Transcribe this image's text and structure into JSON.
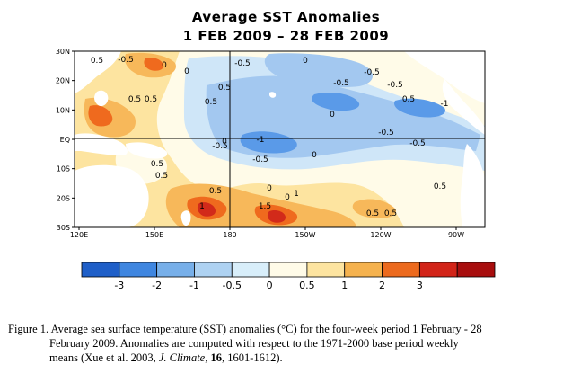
{
  "title": {
    "line1": "Average SST Anomalies",
    "line2": "1 FEB 2009 – 28 FEB 2009"
  },
  "map": {
    "lat_labels": [
      "30N",
      "20N",
      "10N",
      "EQ",
      "10S",
      "20S",
      "30S"
    ],
    "lon_labels": [
      "120E",
      "150E",
      "180",
      "150W",
      "120W",
      "90W"
    ],
    "contour_labels": [
      "0.5",
      "-0.5",
      "0",
      "0.5",
      "-0.5",
      "0",
      "-0.5",
      "0.5",
      "0.5",
      "0",
      "0.5",
      "-1",
      "-0.5",
      "-0.5",
      "0",
      "-1",
      "-0.5",
      "-0.5",
      "0",
      "-0.5",
      "-0.5",
      "0.5",
      "0.5",
      "0",
      "0",
      "0.5",
      "0",
      "1",
      "1",
      "1.5",
      "0.5",
      "0.5",
      "0.5",
      "0.5"
    ],
    "colors": {
      "land": "#ffffff",
      "strong_cold": "#1f6fd8",
      "cold": "#5a9ae8",
      "cool": "#a3c8f0",
      "slight_cool": "#cfe6f8",
      "neutral": "#fffbe8",
      "slight_warm": "#fde4a0",
      "warm": "#f7b85a",
      "hot": "#ef6a1e",
      "very_hot": "#d22a1a"
    }
  },
  "colorbar": {
    "labels": [
      "-3",
      "-2",
      "-1",
      "-0.5",
      "0",
      "0.5",
      "1",
      "2",
      "3"
    ],
    "colors": [
      "#1f5fc8",
      "#3f86e0",
      "#77afe9",
      "#aed2f2",
      "#d8eefa",
      "#fffbe8",
      "#fde4a0",
      "#f5b24e",
      "#ec6a1e",
      "#d22418",
      "#a80e0e"
    ]
  },
  "caption": {
    "line1": "Figure 1. Average sea surface temperature (SST) anomalies (°C) for the four-week period 1 February - 28",
    "line2": "February 2009.   Anomalies are computed with respect to the 1971-2000 base period weekly",
    "line3_a": "means (Xue et al. 2003, ",
    "line3_b": "J. Climate",
    "line3_c": ", ",
    "line3_d": "16",
    "line3_e": ", 1601-1612)."
  }
}
